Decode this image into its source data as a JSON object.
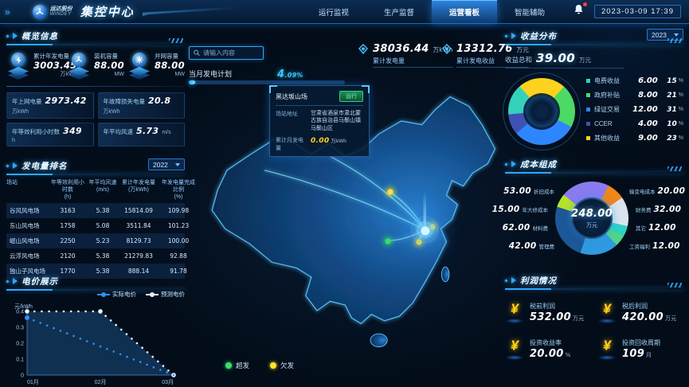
{
  "header": {
    "brand": "运达股份",
    "brand_en": "WINDEY",
    "title": "集控中心",
    "nav": [
      {
        "label": "运行监视",
        "active": false
      },
      {
        "label": "生产监督",
        "active": false
      },
      {
        "label": "运营看板",
        "active": true
      },
      {
        "label": "智能辅助",
        "active": false
      }
    ],
    "datetime": "2023-03-09 17:39"
  },
  "left": {
    "overview": {
      "title": "概览信息",
      "stats": [
        {
          "icon": "generation-icon",
          "label": "累计年发电量",
          "value": "3003.45",
          "unit": "万kWh"
        },
        {
          "icon": "turbine-icon",
          "label": "装机容量",
          "value": "88.00",
          "unit": "MW"
        },
        {
          "icon": "grid-icon",
          "label": "并网容量",
          "value": "88.00",
          "unit": "MW"
        }
      ],
      "metrics": [
        {
          "label": "年上网电量",
          "value": "2973.42",
          "unit": "万kWh"
        },
        {
          "label": "年故障损失电量",
          "value": "20.8",
          "unit": "万kWh"
        },
        {
          "label": "年等效利用小时数",
          "value": "349",
          "unit": "h"
        },
        {
          "label": "年平均风速",
          "value": "5.73",
          "unit": "m/s"
        }
      ]
    },
    "ranking": {
      "title": "发电量排名",
      "year": "2022",
      "columns": [
        {
          "name": "场站",
          "unit": ""
        },
        {
          "name": "年等效利用小时数",
          "unit": "(h)"
        },
        {
          "name": "年平均风速",
          "unit": "(m/s)"
        },
        {
          "name": "累计年发电量",
          "unit": "(万kWh)"
        },
        {
          "name": "年发电量完成比例",
          "unit": "(%)"
        }
      ],
      "rows": [
        [
          "谷风风电场",
          "3163",
          "5.38",
          "15814.09",
          "109.98"
        ],
        [
          "东山风电场",
          "1758",
          "5.08",
          "3511.84",
          "101.23"
        ],
        [
          "岷山风电场",
          "2250",
          "5.23",
          "8129.73",
          "100.00"
        ],
        [
          "云浮风电场",
          "2120",
          "5.38",
          "21279.83",
          "92.88"
        ],
        [
          "独山子风电场",
          "1770",
          "5.38",
          "888.14",
          "91.78"
        ]
      ]
    },
    "price_chart": {
      "title": "电价展示",
      "type": "line",
      "y_label": "元/kWh",
      "y_ticks": [
        0,
        0.1,
        0.2,
        0.3,
        0.4
      ],
      "x_ticks": [
        "01月",
        "02月",
        "03月"
      ],
      "ylim": [
        0,
        0.4
      ],
      "series": [
        {
          "name": "实际电价",
          "color": "#2f8fff",
          "points": [
            [
              0,
              0.36
            ],
            [
              1,
              0.18
            ],
            [
              2,
              0
            ]
          ]
        },
        {
          "name": "预测电价",
          "color": "#eef6ff",
          "points": [
            [
              0,
              0.4
            ],
            [
              1,
              0.4
            ],
            [
              2,
              0
            ]
          ]
        }
      ]
    }
  },
  "center": {
    "search": {
      "placeholder": "请输入内容"
    },
    "stats": [
      {
        "value": "38036.44",
        "unit": "万kWh",
        "label": "累计发电量"
      },
      {
        "value": "13312.76",
        "unit": "万元",
        "label": "累计发电收益"
      }
    ],
    "plan": {
      "label": "当月发电计划",
      "percent": "4.09%",
      "pct_num": 4.09
    },
    "tooltip": {
      "title": "黑达坂山场",
      "badge": "运行",
      "addr_label": "场站地址",
      "addr": "甘肃省酒泉市肃北蒙古族自治县马鬃山镇马鬃山区",
      "gen_label": "累计月发电量",
      "gen_value": "0.00",
      "gen_unit": "万kWh"
    },
    "map": {
      "markers": [
        {
          "x": 63.0,
          "y": 39.4,
          "status": "under"
        },
        {
          "x": 76.2,
          "y": 52.0,
          "status": "under"
        },
        {
          "x": 71.9,
          "y": 57.4,
          "status": "under"
        },
        {
          "x": 62.3,
          "y": 57.1,
          "status": "over"
        },
        {
          "x": 74.0,
          "y": 53.3,
          "status": "hub"
        }
      ],
      "legend": [
        {
          "label": "超发",
          "color": "#35e06a"
        },
        {
          "label": "欠发",
          "color": "#ffe32b"
        }
      ]
    }
  },
  "right": {
    "revenue": {
      "title": "收益分布",
      "year": "2023",
      "total_label": "收益总和",
      "total": "39.00",
      "total_unit": "万元",
      "type": "donut",
      "items": [
        {
          "label": "电费收益",
          "value": "6.00",
          "pct": "15",
          "color": "#35d0ba"
        },
        {
          "label": "政府补贴",
          "value": "8.00",
          "pct": "21",
          "color": "#4cd964"
        },
        {
          "label": "绿证交易",
          "value": "12.00",
          "pct": "31",
          "color": "#2e86ff"
        },
        {
          "label": "CCER",
          "value": "4.00",
          "pct": "10",
          "color": "#3f51b5"
        },
        {
          "label": "其他收益",
          "value": "9.00",
          "pct": "23",
          "color": "#ffd21e"
        }
      ]
    },
    "cost": {
      "title": "成本组成",
      "type": "donut",
      "center_value": "248.00",
      "center_unit": "万元",
      "left": [
        {
          "value": "53.00",
          "label": "折旧成本"
        },
        {
          "value": "15.00",
          "label": "年大修成本"
        },
        {
          "value": "62.00",
          "label": "材料费"
        },
        {
          "value": "42.00",
          "label": "管理费"
        }
      ],
      "right": [
        {
          "label": "输变电成本",
          "value": "20.00"
        },
        {
          "label": "财务费",
          "value": "32.00"
        },
        {
          "label": "其它",
          "value": "12.00"
        },
        {
          "label": "工资福利",
          "value": "12.00"
        }
      ],
      "slices": [
        {
          "v": 53,
          "color": "#8b7bf0"
        },
        {
          "v": 20,
          "color": "#f0861c"
        },
        {
          "v": 32,
          "color": "#d9e4ee"
        },
        {
          "v": 12,
          "color": "#2dd3c4"
        },
        {
          "v": 12,
          "color": "#53d38a"
        },
        {
          "v": 42,
          "color": "#2f9ae0"
        },
        {
          "v": 62,
          "color": "#1c5796"
        },
        {
          "v": 15,
          "color": "#b6e22a"
        }
      ]
    },
    "profit": {
      "title": "利润情况",
      "items": [
        {
          "label": "税前利润",
          "value": "532.00",
          "unit": "万元"
        },
        {
          "label": "税后利润",
          "value": "420.00",
          "unit": "万元"
        },
        {
          "label": "投资收益率",
          "value": "20.00",
          "unit": "%"
        },
        {
          "label": "投资回收周期",
          "value": "109",
          "unit": "月"
        }
      ]
    }
  }
}
